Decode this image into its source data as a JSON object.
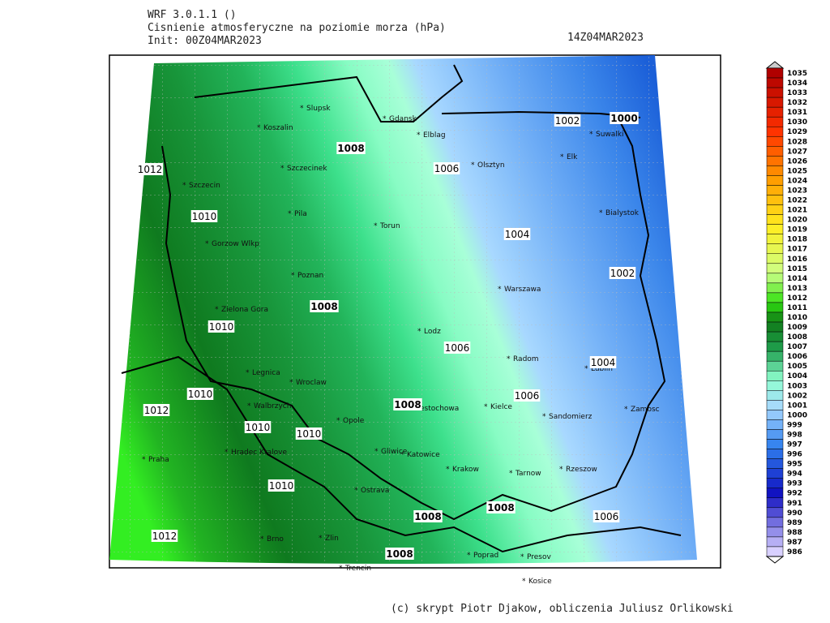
{
  "header": {
    "model": "WRF 3.0.1.1 ()",
    "field": "Cisnienie atmosferyczne na poziomie morza (hPa)",
    "init": "Init: 00Z04MAR2023",
    "valid": "14Z04MAR2023"
  },
  "map": {
    "cities": [
      "Slupsk",
      "Gdansk",
      "Koszalin",
      "Elblag",
      "Szczecinek",
      "Olsztyn",
      "Szczecin",
      "Elk",
      "Suwalki",
      "Pila",
      "Torun",
      "Bialystok",
      "Gorzow Wlkp",
      "Poznan",
      "Warszawa",
      "Zielona Gora",
      "Lodz",
      "Radom",
      "Lublin",
      "Legnica",
      "Wroclaw",
      "Kielce",
      "Walbrzych",
      "Czestochowa",
      "Opole",
      "Sandomierz",
      "Zamosc",
      "Hradec Kralove",
      "Gliwice",
      "Katowice",
      "Praha",
      "Krakow",
      "Tarnow",
      "Rzeszow",
      "Ostrava",
      "Brno",
      "Zlin",
      "Poprad",
      "Presov",
      "Kosice",
      "Trencin"
    ],
    "contour_labels": [
      1012,
      1010,
      1008,
      1006,
      1002,
      1000,
      1004,
      1002,
      1008,
      1010,
      1006,
      1004,
      1010,
      1012,
      1008,
      1006,
      1010,
      1010,
      1010,
      1008,
      1008,
      1006,
      1012,
      1008
    ]
  },
  "colorbar": {
    "labels": [
      1035,
      1034,
      1033,
      1032,
      1031,
      1030,
      1029,
      1028,
      1027,
      1026,
      1025,
      1024,
      1023,
      1022,
      1021,
      1020,
      1019,
      1018,
      1017,
      1016,
      1015,
      1014,
      1013,
      1012,
      1011,
      1010,
      1009,
      1008,
      1007,
      1006,
      1005,
      1004,
      1003,
      1002,
      1001,
      1000,
      999,
      998,
      997,
      996,
      995,
      994,
      993,
      992,
      991,
      990,
      989,
      988,
      987,
      986
    ]
  },
  "footer": "(c) skrypt Piotr Djakow, obliczenia Juliusz Orlikowski"
}
